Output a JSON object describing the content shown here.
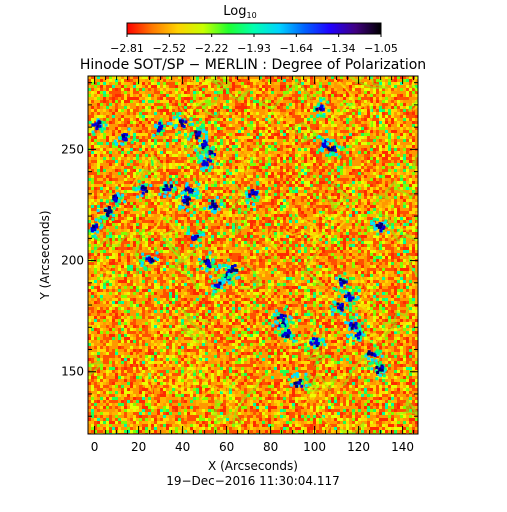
{
  "colorbar": {
    "title_base": "Log",
    "title_sub": "10",
    "tick_labels": [
      "−2.81",
      "−2.52",
      "−2.22",
      "−1.93",
      "−1.64",
      "−1.34",
      "−1.05"
    ],
    "range": [
      -2.81,
      -1.05
    ],
    "colors": [
      "#ff0000",
      "#ff7a00",
      "#ffd200",
      "#c8ff00",
      "#20ff30",
      "#00ffb0",
      "#00d2ff",
      "#0060ff",
      "#2000ff",
      "#400080",
      "#000000"
    ]
  },
  "chart_data": {
    "type": "heatmap",
    "title": "Hinode SOT/SP − MERLIN : Degree of Polarization",
    "xlabel": "X (Arcseconds)",
    "ylabel": "Y (Arcseconds)",
    "xlim": [
      -3,
      147
    ],
    "ylim": [
      122,
      283
    ],
    "x_ticks": [
      0,
      20,
      40,
      60,
      80,
      100,
      120,
      140
    ],
    "y_ticks": [
      150,
      200,
      250
    ],
    "color_scale": "log10",
    "dominant_colors": [
      "#ff6a00",
      "#ff9a00",
      "#ffd000",
      "#9cff00",
      "#20ff60",
      "#0000ff",
      "#000080"
    ],
    "high_polarization_regions": [
      {
        "x": 1,
        "y": 261
      },
      {
        "x": 14,
        "y": 255
      },
      {
        "x": 0,
        "y": 215
      },
      {
        "x": 6,
        "y": 222
      },
      {
        "x": 10,
        "y": 228
      },
      {
        "x": 47,
        "y": 257
      },
      {
        "x": 50,
        "y": 252
      },
      {
        "x": 53,
        "y": 248
      },
      {
        "x": 51,
        "y": 244
      },
      {
        "x": 40,
        "y": 262
      },
      {
        "x": 43,
        "y": 232
      },
      {
        "x": 42,
        "y": 227
      },
      {
        "x": 54,
        "y": 225
      },
      {
        "x": 46,
        "y": 210
      },
      {
        "x": 33,
        "y": 233
      },
      {
        "x": 22,
        "y": 232
      },
      {
        "x": 103,
        "y": 268
      },
      {
        "x": 105,
        "y": 252
      },
      {
        "x": 108,
        "y": 250
      },
      {
        "x": 25,
        "y": 200
      },
      {
        "x": 60,
        "y": 193
      },
      {
        "x": 56,
        "y": 189
      },
      {
        "x": 63,
        "y": 196
      },
      {
        "x": 52,
        "y": 199
      },
      {
        "x": 85,
        "y": 175
      },
      {
        "x": 86,
        "y": 171
      },
      {
        "x": 87,
        "y": 167
      },
      {
        "x": 120,
        "y": 167
      },
      {
        "x": 118,
        "y": 171
      },
      {
        "x": 112,
        "y": 179
      },
      {
        "x": 116,
        "y": 184
      },
      {
        "x": 113,
        "y": 190
      },
      {
        "x": 100,
        "y": 163
      },
      {
        "x": 126,
        "y": 158
      },
      {
        "x": 130,
        "y": 151
      },
      {
        "x": 93,
        "y": 145
      },
      {
        "x": 30,
        "y": 260
      },
      {
        "x": 72,
        "y": 230
      },
      {
        "x": 130,
        "y": 215
      }
    ]
  },
  "footer": {
    "timestamp": "19−Dec−2016 11:30:04.117"
  }
}
